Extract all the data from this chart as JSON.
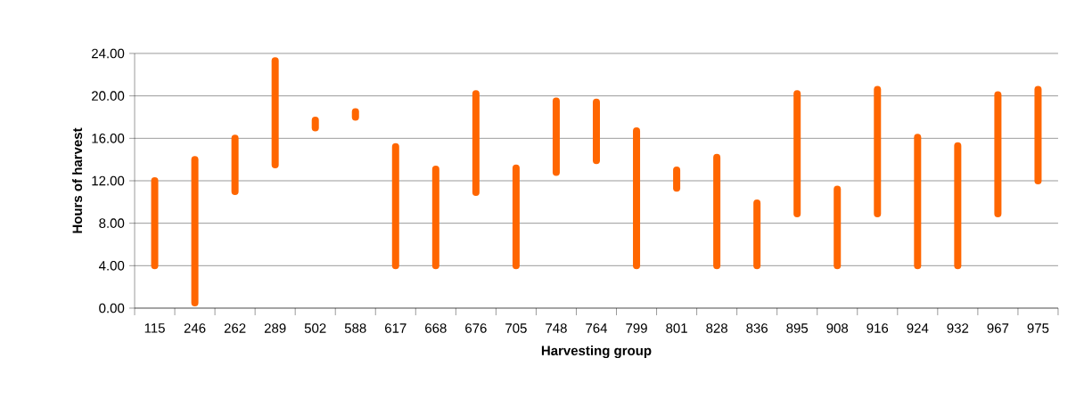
{
  "chart_data": {
    "type": "bar",
    "xlabel": "Harvesting group",
    "ylabel": "Hours of harvest",
    "categories": [
      "115",
      "246",
      "262",
      "289",
      "502",
      "588",
      "617",
      "668",
      "676",
      "705",
      "748",
      "764",
      "799",
      "801",
      "828",
      "836",
      "895",
      "908",
      "916",
      "924",
      "932",
      "967",
      "975"
    ],
    "base": [
      4,
      0.5,
      11,
      13.5,
      17,
      18,
      4,
      4,
      10.9,
      4,
      12.8,
      13.9,
      4,
      11.3,
      4,
      4,
      8.9,
      4,
      8.9,
      4,
      4,
      8.9,
      12
    ],
    "values": [
      8,
      13.5,
      5,
      9.8,
      0.7,
      0.5,
      11.2,
      9.1,
      9.3,
      9.2,
      6.7,
      5.5,
      12.7,
      1.7,
      10.2,
      5.9,
      11.3,
      7.2,
      11.7,
      12.1,
      11.3,
      11.2,
      8.6
    ],
    "color": "#ff6600",
    "ylim": [
      0,
      24
    ],
    "yticks": [
      {
        "value": 0,
        "label": "0.00"
      },
      {
        "value": 4,
        "label": "4.00"
      },
      {
        "value": 8,
        "label": "8.00"
      },
      {
        "value": 12,
        "label": "12.00"
      },
      {
        "value": 16,
        "label": "16.00"
      },
      {
        "value": 20,
        "label": "20.00"
      },
      {
        "value": 24,
        "label": "24.00"
      }
    ],
    "grid": "y"
  }
}
